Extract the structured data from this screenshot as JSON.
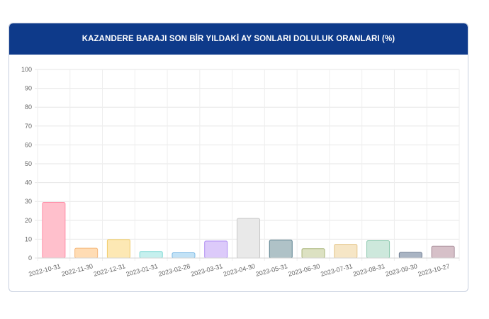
{
  "header": {
    "title": "KAZANDERE BARAJI SON BİR YILDAKİ AY SONLARI DOLULUK ORANLARI (%)"
  },
  "chart_data": {
    "type": "bar",
    "title": "KAZANDERE BARAJI SON BİR YILDAKİ AY SONLARI DOLULUK ORANLARI (%)",
    "xlabel": "",
    "ylabel": "",
    "ylim": [
      0,
      100
    ],
    "yticks": [
      0,
      10,
      20,
      30,
      40,
      50,
      60,
      70,
      80,
      90,
      100
    ],
    "grid": true,
    "legend": "none",
    "categories": [
      "2022-10-31",
      "2022-11-30",
      "2022-12-31",
      "2023-01-31",
      "2023-02-28",
      "2023-03-31",
      "2023-04-30",
      "2023-05-31",
      "2023-06-30",
      "2023-07-31",
      "2023-08-31",
      "2023-09-30",
      "2023-10-27"
    ],
    "values": [
      29.5,
      5.2,
      9.8,
      3.5,
      2.8,
      9.0,
      21.0,
      9.5,
      5.0,
      7.3,
      9.2,
      3.0,
      6.3
    ],
    "colors": {
      "fills": [
        "#ffc0cc",
        "#ffdcb4",
        "#fde8b4",
        "#c6f0ee",
        "#c2e2f6",
        "#dccafa",
        "#e9e9e9",
        "#afc2c7",
        "#dce1c2",
        "#f6e6c6",
        "#cde8dc",
        "#a9b4c3",
        "#d6c0c8"
      ],
      "borders": [
        "#ff8fa8",
        "#f5b77a",
        "#f0cc68",
        "#7cd9d4",
        "#7fbbe6",
        "#ae8cf2",
        "#c8c8c8",
        "#5c8190",
        "#a9b57a",
        "#e4c58a",
        "#8ec9b0",
        "#6f7d93",
        "#a98f9b"
      ]
    }
  }
}
